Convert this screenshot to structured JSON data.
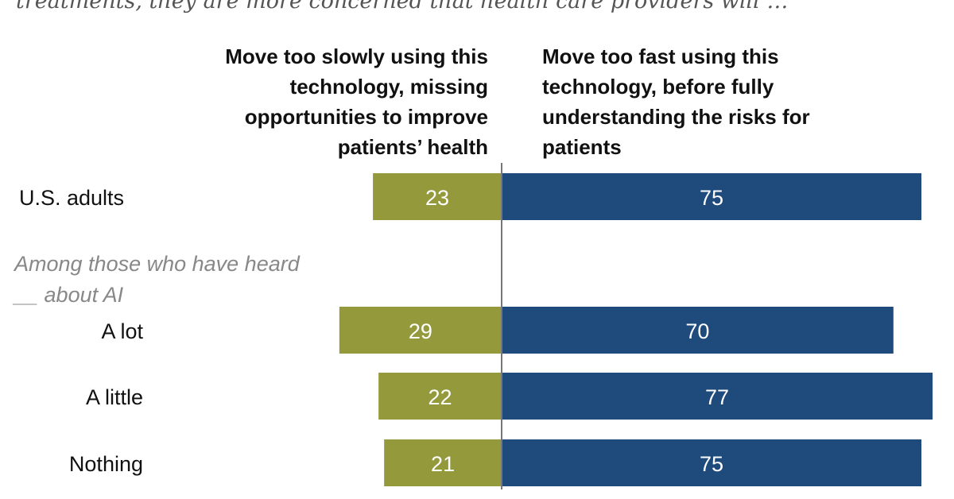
{
  "title": "treatments, they are more concerned that health care providers will …",
  "chart_data": {
    "type": "bar",
    "orientation": "horizontal-diverging",
    "series": [
      {
        "name": "Move too slowly using this technology, missing opportunities to improve patients’ health",
        "color": "#949a3c",
        "values": [
          23,
          29,
          22,
          21
        ]
      },
      {
        "name": "Move too fast using this technology, before fully understanding the risks for patients",
        "color": "#1f4a7c",
        "values": [
          75,
          70,
          77,
          75
        ]
      }
    ],
    "categories": [
      "U.S. adults",
      "A lot",
      "A little",
      "Nothing"
    ],
    "group_note": "Among those who have heard __ about AI",
    "grid": false
  }
}
